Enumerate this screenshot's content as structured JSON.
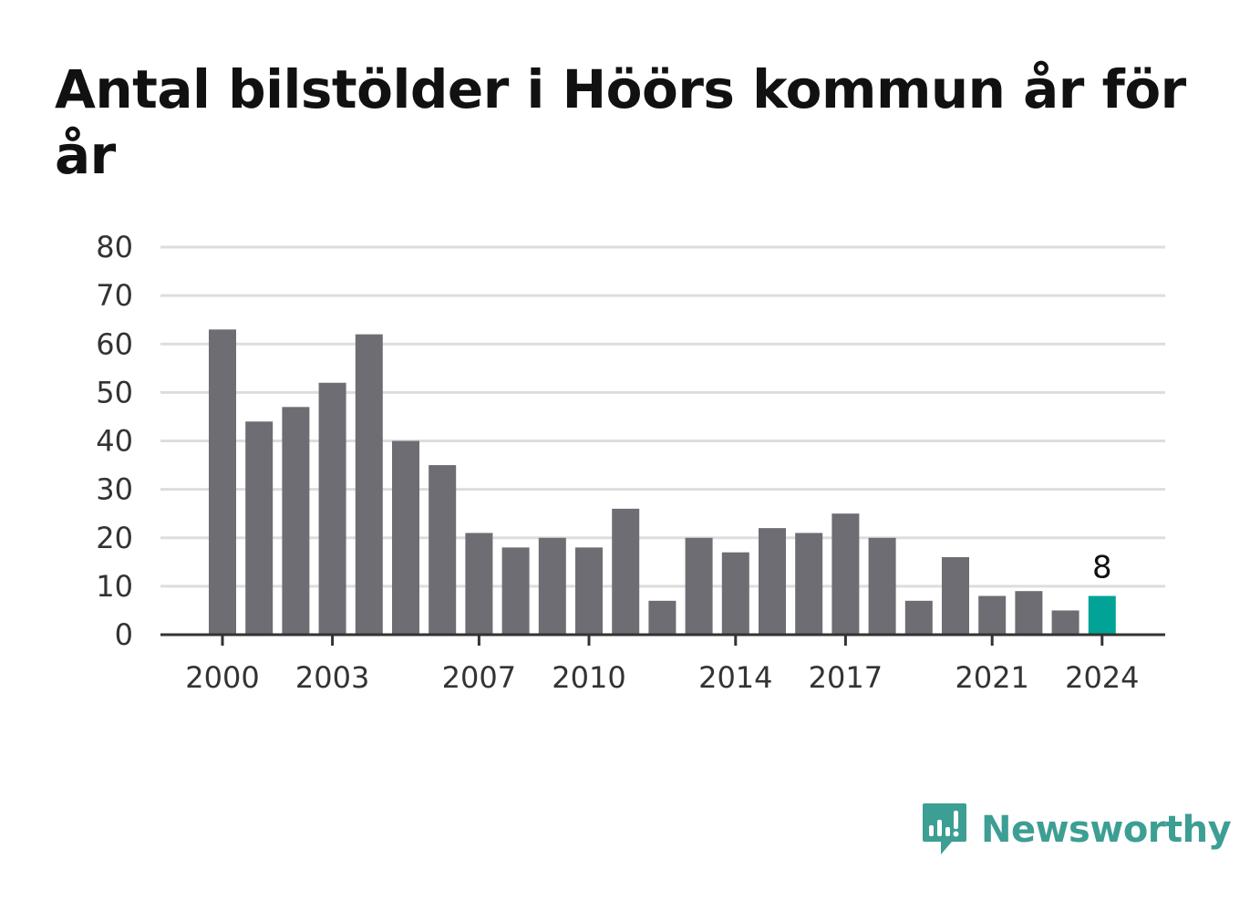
{
  "colors": {
    "bar": "#6e6d73",
    "highlight": "#00a396",
    "grid": "#dddddd",
    "axis": "#333333",
    "brand": "#3d9e94"
  },
  "chart_data": {
    "type": "bar",
    "title": "Antal bilstölder i Höörs kommun år för år",
    "xlabel": "",
    "ylabel": "",
    "ylim": [
      0,
      80
    ],
    "yticks": [
      0,
      10,
      20,
      30,
      40,
      50,
      60,
      70,
      80
    ],
    "grid": true,
    "categories": [
      2000,
      2001,
      2002,
      2003,
      2004,
      2005,
      2006,
      2007,
      2008,
      2009,
      2010,
      2011,
      2012,
      2013,
      2014,
      2015,
      2016,
      2017,
      2018,
      2019,
      2020,
      2021,
      2022,
      2023,
      2024
    ],
    "values": [
      63,
      44,
      47,
      52,
      62,
      40,
      35,
      21,
      18,
      20,
      18,
      26,
      7,
      20,
      17,
      22,
      21,
      25,
      20,
      7,
      16,
      8,
      9,
      5,
      8
    ],
    "xtick_labels": [
      2000,
      2003,
      2007,
      2010,
      2014,
      2017,
      2021,
      2024
    ],
    "highlight_index": 24,
    "data_labels": [
      {
        "category": 2024,
        "text": "8"
      }
    ]
  },
  "brand": {
    "name": "Newsworthy",
    "icon": "newsworthy-logo-icon"
  }
}
